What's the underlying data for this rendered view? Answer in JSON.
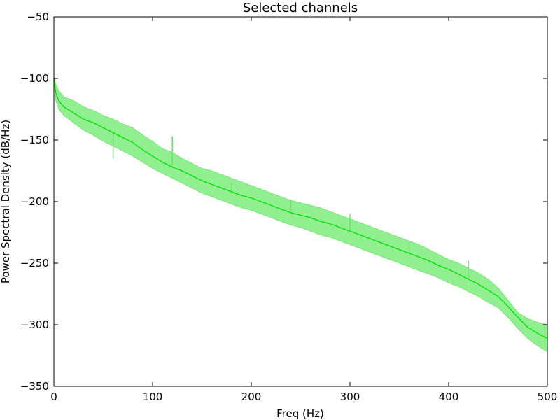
{
  "chart_data": {
    "type": "area",
    "title": "Selected channels",
    "xlabel": "Freq (Hz)",
    "ylabel": "Power Spectral Density (dB/Hz)",
    "xlim": [
      0,
      500
    ],
    "ylim": [
      -350,
      -50
    ],
    "xticks": [
      0,
      100,
      200,
      300,
      400,
      500
    ],
    "yticks": [
      -50,
      -100,
      -150,
      -200,
      -250,
      -300,
      -350
    ],
    "grid": false,
    "legend": "none",
    "colors": {
      "mean_line": "#00e000",
      "band_fill": "#90f090",
      "band_edge": "#70e070"
    },
    "series": [
      {
        "x": [
          0,
          2,
          5,
          10,
          20,
          30,
          40,
          50,
          60,
          70,
          80,
          90,
          100,
          110,
          120,
          130,
          140,
          150,
          160,
          170,
          180,
          190,
          200,
          210,
          220,
          230,
          240,
          250,
          260,
          270,
          280,
          290,
          300,
          310,
          320,
          330,
          340,
          350,
          360,
          370,
          380,
          390,
          400,
          410,
          420,
          430,
          440,
          450,
          460,
          470,
          480,
          490,
          500
        ],
        "mean": [
          -100,
          -112,
          -118,
          -123,
          -128,
          -133,
          -136,
          -140,
          -144,
          -148,
          -152,
          -158,
          -163,
          -168,
          -172,
          -175,
          -179,
          -183,
          -186,
          -189,
          -192,
          -195,
          -197,
          -200,
          -203,
          -206,
          -209,
          -211,
          -213,
          -216,
          -218,
          -221,
          -224,
          -227,
          -230,
          -233,
          -236,
          -239,
          -242,
          -245,
          -248,
          -252,
          -255,
          -259,
          -263,
          -267,
          -272,
          -277,
          -285,
          -294,
          -302,
          -307,
          -311
        ],
        "upper": [
          -100,
          -105,
          -110,
          -115,
          -118,
          -123,
          -126,
          -130,
          -133,
          -137,
          -140,
          -146,
          -151,
          -157,
          -160,
          -165,
          -169,
          -173,
          -175,
          -178,
          -181,
          -184,
          -187,
          -190,
          -193,
          -196,
          -199,
          -201,
          -203,
          -205,
          -208,
          -211,
          -214,
          -217,
          -220,
          -223,
          -226,
          -229,
          -232,
          -235,
          -239,
          -243,
          -247,
          -250,
          -254,
          -258,
          -263,
          -270,
          -280,
          -290,
          -295,
          -298,
          -300
        ],
        "lower": [
          -103,
          -118,
          -125,
          -130,
          -136,
          -142,
          -146,
          -151,
          -155,
          -159,
          -163,
          -168,
          -173,
          -177,
          -181,
          -185,
          -189,
          -193,
          -196,
          -199,
          -202,
          -205,
          -207,
          -210,
          -213,
          -216,
          -219,
          -221,
          -224,
          -227,
          -229,
          -232,
          -235,
          -238,
          -241,
          -244,
          -247,
          -250,
          -253,
          -256,
          -259,
          -262,
          -266,
          -269,
          -273,
          -277,
          -282,
          -286,
          -294,
          -303,
          -311,
          -317,
          -322
        ],
        "spikes": [
          {
            "x": 60,
            "y": -165
          },
          {
            "x": 120,
            "y": -147
          },
          {
            "x": 180,
            "y": -185
          },
          {
            "x": 240,
            "y": -198
          },
          {
            "x": 300,
            "y": -210
          },
          {
            "x": 360,
            "y": -232
          },
          {
            "x": 420,
            "y": -248
          }
        ]
      }
    ]
  }
}
